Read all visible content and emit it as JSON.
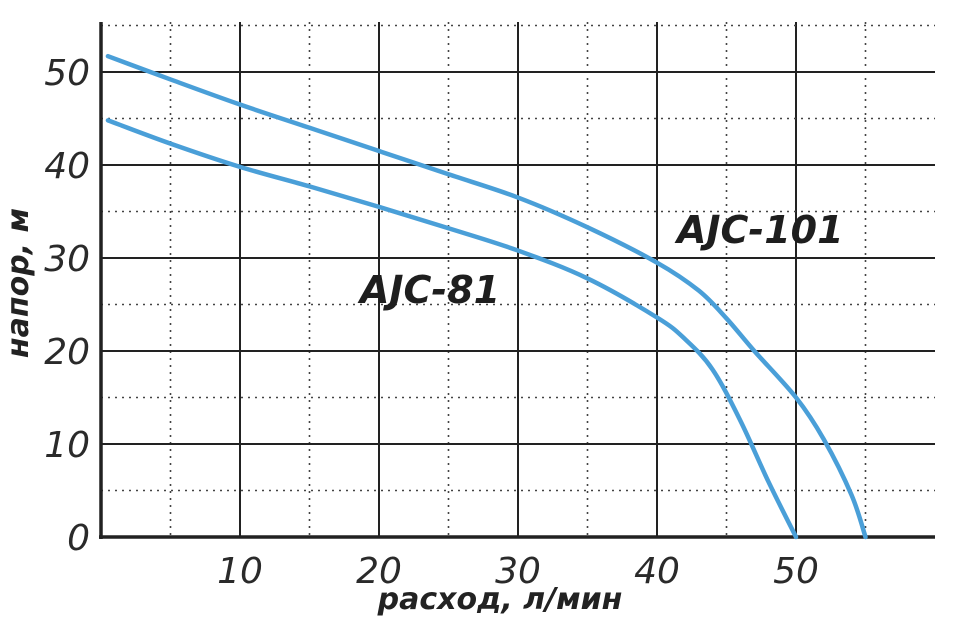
{
  "chart_data": {
    "type": "line",
    "xlabel": "расход, л/мин",
    "ylabel": "напор, м",
    "xlim": [
      0,
      60
    ],
    "ylim": [
      0,
      55
    ],
    "x_ticks": [
      "10",
      "20",
      "30",
      "40",
      "50"
    ],
    "y_ticks": [
      "0",
      "10",
      "20",
      "30",
      "40",
      "50"
    ],
    "grid": true,
    "series": [
      {
        "name": "AJC-101",
        "x": [
          0.5,
          5,
          10,
          15,
          20,
          25,
          30,
          35,
          40,
          43,
          45,
          47,
          50,
          52,
          54,
          55
        ],
        "y": [
          51.7,
          49.2,
          46.5,
          44.0,
          41.5,
          39.0,
          36.5,
          33.3,
          29.5,
          26.5,
          23.5,
          20.0,
          15.0,
          10.5,
          4.5,
          0
        ]
      },
      {
        "name": "AJC-81",
        "x": [
          0.5,
          5,
          10,
          15,
          20,
          25,
          30,
          35,
          40,
          42,
          44,
          46,
          48,
          50
        ],
        "y": [
          44.8,
          42.3,
          39.8,
          37.7,
          35.5,
          33.2,
          30.8,
          27.8,
          23.6,
          21.3,
          18.0,
          12.5,
          6.0,
          0
        ]
      }
    ],
    "colors": {
      "line": "#4a9fd8",
      "grid_solid": "#222222",
      "grid_dotted": "#444444"
    }
  }
}
